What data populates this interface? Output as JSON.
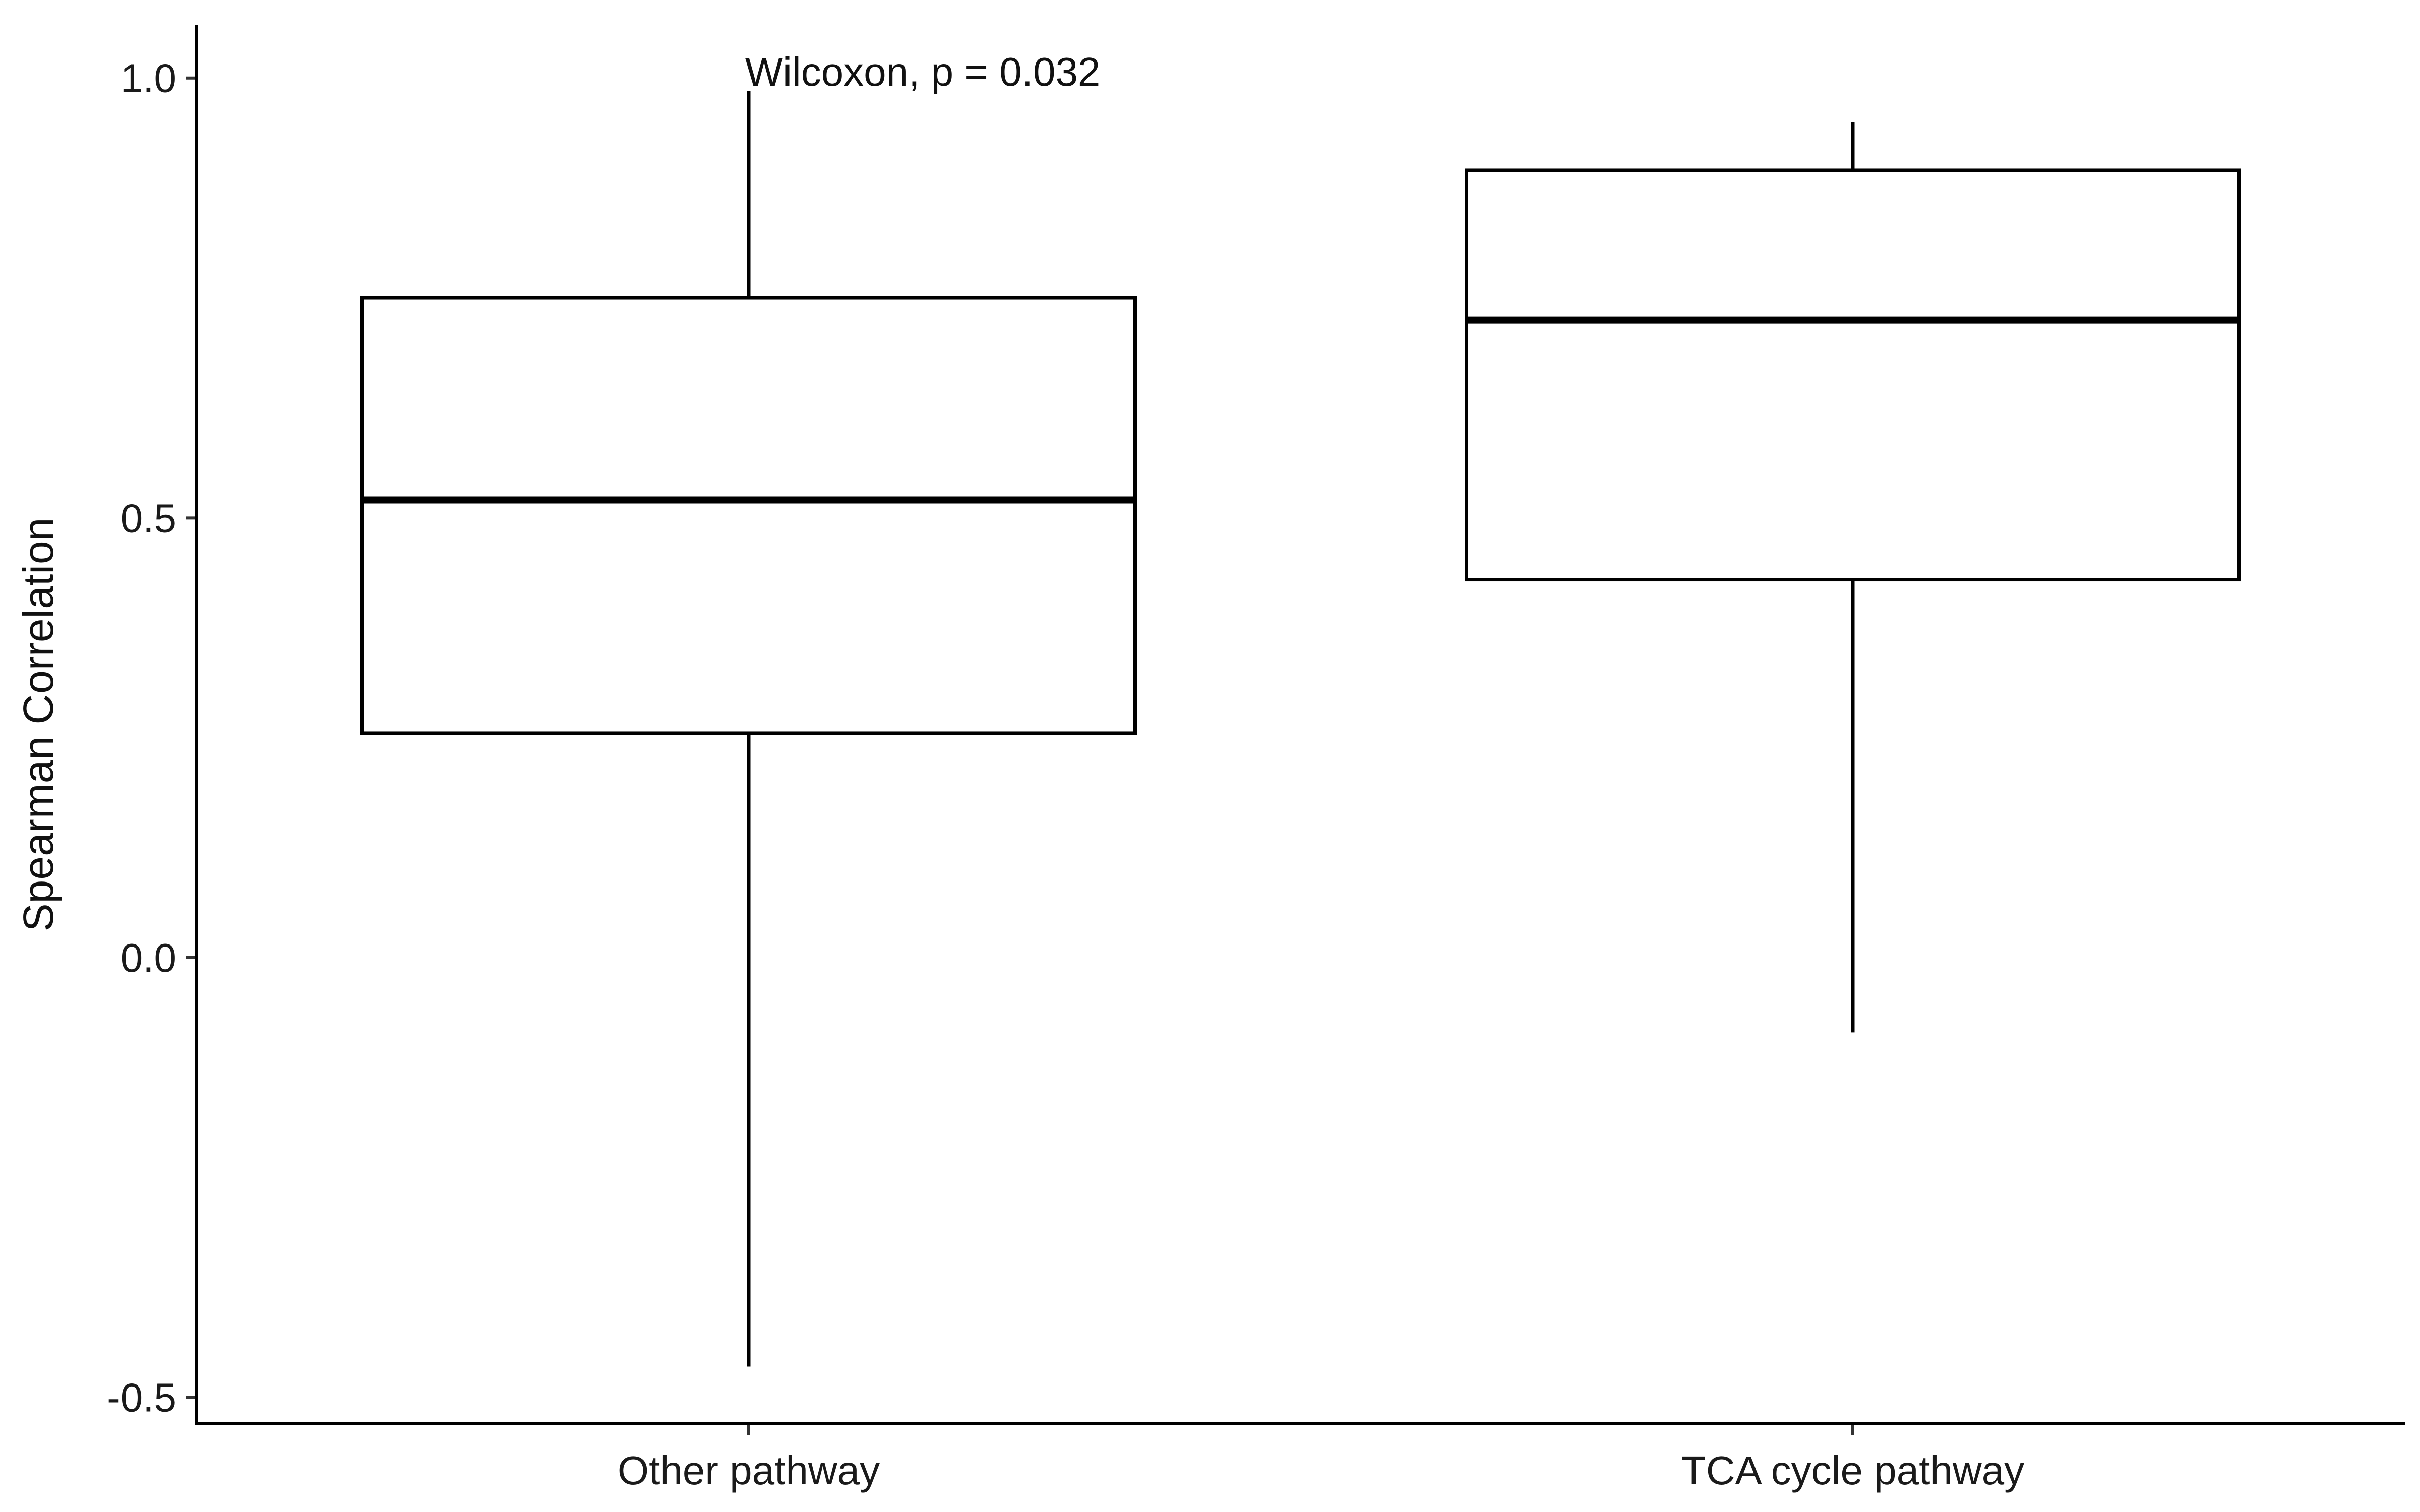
{
  "chart_data": {
    "type": "boxplot",
    "xlabel": "",
    "ylabel": "Spearman Correlation",
    "ylim": [
      -0.53,
      1.06
    ],
    "yticks": [
      -0.5,
      0.0,
      0.5,
      1.0
    ],
    "ytick_labels": [
      "-0.5",
      "0.0",
      "0.5",
      "1.0"
    ],
    "grid": false,
    "legend": "none",
    "categories": [
      "Other pathway",
      "TCA cycle pathway"
    ],
    "boxes": [
      {
        "category": "Other pathway",
        "min": -0.465,
        "q1": 0.255,
        "median": 0.52,
        "q3": 0.75,
        "max": 0.985
      },
      {
        "category": "TCA cycle pathway",
        "min": -0.085,
        "q1": 0.43,
        "median": 0.725,
        "q3": 0.895,
        "max": 0.95
      }
    ],
    "annotation": {
      "text": "Wilcoxon, p = 0.032"
    }
  }
}
